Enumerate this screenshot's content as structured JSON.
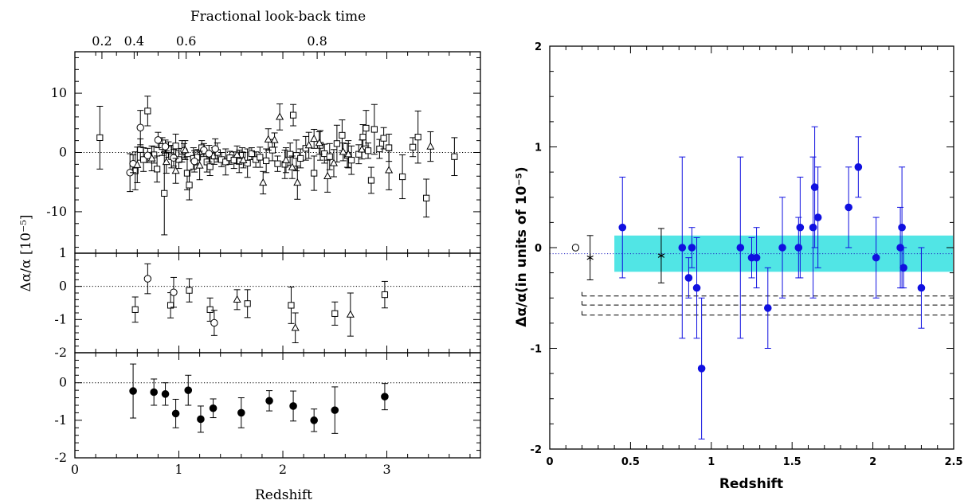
{
  "chart_data": [
    {
      "type": "scatter",
      "panel": "left-top",
      "top_axis": {
        "label": "Fractional look-back time",
        "ticks": [
          {
            "z": 0.26,
            "label": "0.2"
          },
          {
            "z": 0.57,
            "label": "0.4"
          },
          {
            "z": 1.07,
            "label": "0.6"
          },
          {
            "z": 2.33,
            "label": "0.8"
          }
        ]
      },
      "ylabel": "Δα/α [10⁻⁵]",
      "xlim": [
        0,
        3.9
      ],
      "ylim": [
        -17,
        17
      ],
      "y_ticks": [
        -10,
        0,
        10
      ],
      "reference_line": 0,
      "series": [
        {
          "marker": "square",
          "points": [
            {
              "x": 0.24,
              "y": 2.5,
              "err": 5.3
            },
            {
              "x": 0.58,
              "y": -3.1,
              "err": 3.2
            },
            {
              "x": 0.63,
              "y": 0.5,
              "err": 1.8
            },
            {
              "x": 0.66,
              "y": -1.2,
              "err": 2.0
            },
            {
              "x": 0.7,
              "y": 7.0,
              "err": 2.5
            },
            {
              "x": 0.76,
              "y": -0.4,
              "err": 1.4
            },
            {
              "x": 0.79,
              "y": -2.8,
              "err": 2.2
            },
            {
              "x": 0.84,
              "y": 1.0,
              "err": 1.5
            },
            {
              "x": 0.86,
              "y": -6.9,
              "err": 7.0
            },
            {
              "x": 0.9,
              "y": 0.5,
              "err": 1.3
            },
            {
              "x": 0.93,
              "y": -0.7,
              "err": 1.9
            },
            {
              "x": 0.97,
              "y": 1.1,
              "err": 2.0
            },
            {
              "x": 1.0,
              "y": -1.2,
              "err": 1.5
            },
            {
              "x": 1.03,
              "y": 0.2,
              "err": 1.8
            },
            {
              "x": 1.08,
              "y": -3.5,
              "err": 2.8
            },
            {
              "x": 1.1,
              "y": -5.5,
              "err": 2.5
            },
            {
              "x": 1.14,
              "y": -1.0,
              "err": 1.8
            },
            {
              "x": 1.18,
              "y": -0.8,
              "err": 1.3
            },
            {
              "x": 1.22,
              "y": 0.8,
              "err": 1.2
            },
            {
              "x": 1.27,
              "y": -1.6,
              "err": 1.7
            },
            {
              "x": 1.3,
              "y": -2.4,
              "err": 1.5
            },
            {
              "x": 1.34,
              "y": -0.6,
              "err": 1.4
            },
            {
              "x": 1.37,
              "y": 0.0,
              "err": 1.6
            },
            {
              "x": 1.41,
              "y": -1.2,
              "err": 1.2
            },
            {
              "x": 1.45,
              "y": -1.6,
              "err": 2.2
            },
            {
              "x": 1.49,
              "y": -0.9,
              "err": 1.1
            },
            {
              "x": 1.53,
              "y": -1.3,
              "err": 1.4
            },
            {
              "x": 1.58,
              "y": -1.5,
              "err": 1.9
            },
            {
              "x": 1.61,
              "y": -0.4,
              "err": 1.2
            },
            {
              "x": 1.66,
              "y": -1.8,
              "err": 2.4
            },
            {
              "x": 1.7,
              "y": -0.2,
              "err": 1.0
            },
            {
              "x": 1.74,
              "y": -1.2,
              "err": 1.3
            },
            {
              "x": 1.78,
              "y": -0.8,
              "err": 1.7
            },
            {
              "x": 1.84,
              "y": -1.4,
              "err": 2.0
            },
            {
              "x": 1.9,
              "y": 0.4,
              "err": 1.8
            },
            {
              "x": 1.95,
              "y": -1.9,
              "err": 1.3
            },
            {
              "x": 2.02,
              "y": -2.0,
              "err": 2.4
            },
            {
              "x": 2.07,
              "y": -0.3,
              "err": 1.9
            },
            {
              "x": 2.1,
              "y": 6.3,
              "err": 1.8
            },
            {
              "x": 2.13,
              "y": -0.5,
              "err": 2.6
            },
            {
              "x": 2.17,
              "y": -1.0,
              "err": 1.6
            },
            {
              "x": 2.22,
              "y": 0.7,
              "err": 2.0
            },
            {
              "x": 2.3,
              "y": -3.5,
              "err": 2.9
            },
            {
              "x": 2.36,
              "y": 1.2,
              "err": 2.5
            },
            {
              "x": 2.4,
              "y": -0.2,
              "err": 1.6
            },
            {
              "x": 2.45,
              "y": -0.7,
              "err": 2.2
            },
            {
              "x": 2.52,
              "y": 1.5,
              "err": 3.1
            },
            {
              "x": 2.57,
              "y": 2.9,
              "err": 2.6
            },
            {
              "x": 2.62,
              "y": -0.5,
              "err": 2.0
            },
            {
              "x": 2.66,
              "y": -1.3,
              "err": 2.4
            },
            {
              "x": 2.73,
              "y": -0.3,
              "err": 1.6
            },
            {
              "x": 2.77,
              "y": 2.6,
              "err": 2.1
            },
            {
              "x": 2.8,
              "y": 4.1,
              "err": 3.0
            },
            {
              "x": 2.82,
              "y": 0.3,
              "err": 1.3
            },
            {
              "x": 2.85,
              "y": -4.7,
              "err": 2.2
            },
            {
              "x": 2.88,
              "y": 3.9,
              "err": 4.2
            },
            {
              "x": 2.93,
              "y": 0.6,
              "err": 1.6
            },
            {
              "x": 2.97,
              "y": 2.4,
              "err": 1.8
            },
            {
              "x": 3.02,
              "y": 0.8,
              "err": 2.3
            },
            {
              "x": 3.15,
              "y": -4.1,
              "err": 3.7
            },
            {
              "x": 3.25,
              "y": 0.9,
              "err": 1.6
            },
            {
              "x": 3.3,
              "y": 2.6,
              "err": 4.4
            },
            {
              "x": 3.38,
              "y": -7.7,
              "err": 3.2
            },
            {
              "x": 3.65,
              "y": -0.7,
              "err": 3.2
            }
          ]
        },
        {
          "marker": "circle",
          "points": [
            {
              "x": 0.53,
              "y": -3.4,
              "err": 3.2
            },
            {
              "x": 0.56,
              "y": -1.9,
              "err": 1.5
            },
            {
              "x": 0.63,
              "y": 4.2,
              "err": 2.9
            },
            {
              "x": 0.7,
              "y": -0.5,
              "err": 1.2
            },
            {
              "x": 0.8,
              "y": 2.1,
              "err": 1.3
            },
            {
              "x": 0.87,
              "y": 1.0,
              "err": 1.1
            },
            {
              "x": 0.95,
              "y": -0.9,
              "err": 1.4
            },
            {
              "x": 1.05,
              "y": 0.3,
              "err": 1.2
            },
            {
              "x": 1.15,
              "y": -1.5,
              "err": 1.8
            },
            {
              "x": 1.24,
              "y": 0.4,
              "err": 1.1
            },
            {
              "x": 1.29,
              "y": -0.2,
              "err": 1.4
            },
            {
              "x": 1.35,
              "y": 0.6,
              "err": 1.7
            }
          ]
        },
        {
          "marker": "triangle",
          "points": [
            {
              "x": 0.6,
              "y": -2.1,
              "err": 3.0
            },
            {
              "x": 0.74,
              "y": -1.0,
              "err": 2.1
            },
            {
              "x": 0.88,
              "y": -1.6,
              "err": 1.9
            },
            {
              "x": 0.97,
              "y": -3.1,
              "err": 2.1
            },
            {
              "x": 1.06,
              "y": 0.4,
              "err": 1.6
            },
            {
              "x": 1.2,
              "y": -2.2,
              "err": 2.4
            },
            {
              "x": 1.56,
              "y": -0.4,
              "err": 1.5
            },
            {
              "x": 1.62,
              "y": -1.3,
              "err": 1.3
            },
            {
              "x": 1.81,
              "y": -5.1,
              "err": 1.9
            },
            {
              "x": 1.86,
              "y": 2.2,
              "err": 1.8
            },
            {
              "x": 1.92,
              "y": 2.1,
              "err": 1.2
            },
            {
              "x": 1.97,
              "y": 6.0,
              "err": 2.2
            },
            {
              "x": 2.03,
              "y": -1.3,
              "err": 2.1
            },
            {
              "x": 2.09,
              "y": -2.5,
              "err": 1.9
            },
            {
              "x": 2.14,
              "y": -5.1,
              "err": 2.8
            },
            {
              "x": 2.25,
              "y": 1.2,
              "err": 2.2
            },
            {
              "x": 2.3,
              "y": 2.3,
              "err": 1.6
            },
            {
              "x": 2.35,
              "y": 1.6,
              "err": 1.9
            },
            {
              "x": 2.43,
              "y": -4.0,
              "err": 2.7
            },
            {
              "x": 2.49,
              "y": -1.8,
              "err": 2.3
            },
            {
              "x": 2.58,
              "y": 0.1,
              "err": 1.5
            },
            {
              "x": 2.63,
              "y": -0.3,
              "err": 2.3
            },
            {
              "x": 2.76,
              "y": 0.5,
              "err": 1.6
            },
            {
              "x": 3.02,
              "y": -3.0,
              "err": 3.3
            },
            {
              "x": 3.42,
              "y": 1.0,
              "err": 2.5
            }
          ]
        }
      ]
    },
    {
      "type": "scatter",
      "panel": "left-middle",
      "xlim": [
        0,
        3.9
      ],
      "ylim": [
        -2,
        1
      ],
      "y_ticks": [
        -2,
        -1,
        0,
        1
      ],
      "reference_line": 0,
      "series": [
        {
          "marker": "square",
          "points": [
            {
              "x": 0.58,
              "y": -0.7,
              "err": 0.38
            },
            {
              "x": 0.92,
              "y": -0.57,
              "err": 0.38
            },
            {
              "x": 1.1,
              "y": -0.12,
              "err": 0.35
            },
            {
              "x": 1.3,
              "y": -0.7,
              "err": 0.35
            },
            {
              "x": 1.66,
              "y": -0.52,
              "err": 0.42
            },
            {
              "x": 2.08,
              "y": -0.57,
              "err": 0.55
            },
            {
              "x": 2.5,
              "y": -0.82,
              "err": 0.35
            },
            {
              "x": 2.98,
              "y": -0.25,
              "err": 0.4
            }
          ]
        },
        {
          "marker": "circle",
          "points": [
            {
              "x": 0.7,
              "y": 0.23,
              "err": 0.45
            },
            {
              "x": 0.95,
              "y": -0.18,
              "err": 0.45
            },
            {
              "x": 1.34,
              "y": -1.1,
              "err": 0.38
            }
          ]
        },
        {
          "marker": "triangle",
          "points": [
            {
              "x": 1.56,
              "y": -0.4,
              "err": 0.3
            },
            {
              "x": 2.12,
              "y": -1.25,
              "err": 0.45
            },
            {
              "x": 2.65,
              "y": -0.85,
              "err": 0.65
            }
          ]
        }
      ]
    },
    {
      "type": "scatter",
      "panel": "left-bottom",
      "xlabel": "Redshift",
      "xlim": [
        0,
        3.9
      ],
      "x_ticks": [
        0,
        1,
        2,
        3
      ],
      "ylim": [
        -2,
        0.8
      ],
      "y_ticks": [
        -2,
        -1,
        0
      ],
      "reference_line": 0,
      "series": [
        {
          "marker": "filled-circle",
          "points": [
            {
              "x": 0.56,
              "y": -0.22,
              "err": 0.72
            },
            {
              "x": 0.76,
              "y": -0.25,
              "err": 0.35
            },
            {
              "x": 0.87,
              "y": -0.3,
              "err": 0.3
            },
            {
              "x": 0.97,
              "y": -0.82,
              "err": 0.38
            },
            {
              "x": 1.09,
              "y": -0.2,
              "err": 0.4
            },
            {
              "x": 1.21,
              "y": -0.97,
              "err": 0.35
            },
            {
              "x": 1.33,
              "y": -0.68,
              "err": 0.25
            },
            {
              "x": 1.6,
              "y": -0.8,
              "err": 0.4
            },
            {
              "x": 1.87,
              "y": -0.48,
              "err": 0.27
            },
            {
              "x": 2.1,
              "y": -0.62,
              "err": 0.4
            },
            {
              "x": 2.3,
              "y": -1.0,
              "err": 0.3
            },
            {
              "x": 2.5,
              "y": -0.73,
              "err": 0.62
            },
            {
              "x": 2.98,
              "y": -0.37,
              "err": 0.35
            }
          ]
        }
      ]
    },
    {
      "type": "scatter",
      "panel": "right",
      "xlabel": "Redshift",
      "ylabel": "Δα/α(in units of 10⁻⁵)",
      "xlim": [
        0,
        2.5
      ],
      "x_ticks": [
        0,
        0.5,
        1,
        1.5,
        2,
        2.5
      ],
      "ylim": [
        -2,
        2
      ],
      "y_ticks": [
        -2,
        -1,
        0,
        1,
        2
      ],
      "reference_line": -0.06,
      "shaded_band": {
        "x": [
          0.4,
          2.5
        ],
        "y": [
          -0.24,
          0.12
        ],
        "color": "#33e0e0"
      },
      "dashed_lines": [
        {
          "x": [
            0.2,
            2.5
          ],
          "y": -0.48
        },
        {
          "x": [
            0.2,
            2.5
          ],
          "y": -0.57
        },
        {
          "x": [
            0.2,
            2.5
          ],
          "y": -0.67
        }
      ],
      "series": [
        {
          "marker": "filled-circle",
          "color": "#1010e0",
          "points": [
            {
              "x": 0.45,
              "y": 0.2,
              "err": 0.5
            },
            {
              "x": 0.82,
              "y": 0.0,
              "err": 0.9
            },
            {
              "x": 0.86,
              "y": -0.3,
              "err": 0.2
            },
            {
              "x": 0.88,
              "y": 0.0,
              "err": 0.2
            },
            {
              "x": 0.91,
              "y": -0.4,
              "err": 0.5
            },
            {
              "x": 0.94,
              "y": -1.2,
              "err": 0.7
            },
            {
              "x": 1.18,
              "y": 0.0,
              "err": 0.9
            },
            {
              "x": 1.25,
              "y": -0.1,
              "err": 0.2
            },
            {
              "x": 1.28,
              "y": -0.1,
              "err": 0.3
            },
            {
              "x": 1.35,
              "y": -0.6,
              "err": 0.4
            },
            {
              "x": 1.44,
              "y": 0.0,
              "err": 0.5
            },
            {
              "x": 1.54,
              "y": 0.0,
              "err": 0.3
            },
            {
              "x": 1.55,
              "y": 0.2,
              "err": 0.5
            },
            {
              "x": 1.63,
              "y": 0.2,
              "err": 0.7
            },
            {
              "x": 1.64,
              "y": 0.6,
              "err": 0.6
            },
            {
              "x": 1.66,
              "y": 0.3,
              "err": 0.5
            },
            {
              "x": 1.85,
              "y": 0.4,
              "err": 0.4
            },
            {
              "x": 1.91,
              "y": 0.8,
              "err": 0.3
            },
            {
              "x": 2.02,
              "y": -0.1,
              "err": 0.4
            },
            {
              "x": 2.17,
              "y": 0.0,
              "err": 0.4
            },
            {
              "x": 2.18,
              "y": 0.2,
              "err": 0.6
            },
            {
              "x": 2.19,
              "y": -0.2,
              "err": 0.2
            },
            {
              "x": 2.3,
              "y": -0.4,
              "err": 0.4
            }
          ]
        },
        {
          "marker": "star",
          "color": "#000000",
          "points": [
            {
              "x": 0.25,
              "y": -0.1,
              "err": 0.22
            },
            {
              "x": 0.69,
              "y": -0.08,
              "err": 0.27
            }
          ]
        },
        {
          "marker": "open-circle",
          "color": "#000000",
          "points": [
            {
              "x": 0.16,
              "y": 0.0,
              "err": 0
            }
          ]
        }
      ]
    }
  ]
}
